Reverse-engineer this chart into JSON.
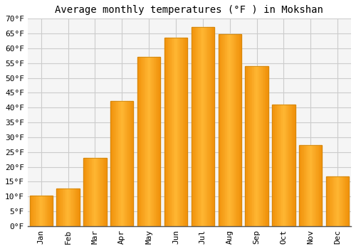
{
  "title": "Average monthly temperatures (°F ) in Mokshan",
  "months": [
    "Jan",
    "Feb",
    "Mar",
    "Apr",
    "May",
    "Jun",
    "Jul",
    "Aug",
    "Sep",
    "Oct",
    "Nov",
    "Dec"
  ],
  "values": [
    10.4,
    12.8,
    23.0,
    42.3,
    57.2,
    63.5,
    67.1,
    64.8,
    54.1,
    41.0,
    27.3,
    16.7
  ],
  "bar_color_center": "#FFB733",
  "bar_color_edge": "#F0900A",
  "bar_edge_color": "#C07800",
  "ylim": [
    0,
    70
  ],
  "yticks": [
    0,
    5,
    10,
    15,
    20,
    25,
    30,
    35,
    40,
    45,
    50,
    55,
    60,
    65,
    70
  ],
  "ytick_labels": [
    "0°F",
    "5°F",
    "10°F",
    "15°F",
    "20°F",
    "25°F",
    "30°F",
    "35°F",
    "40°F",
    "45°F",
    "50°F",
    "55°F",
    "60°F",
    "65°F",
    "70°F"
  ],
  "background_color": "#ffffff",
  "plot_bg_color": "#f5f5f5",
  "grid_color": "#cccccc",
  "title_fontsize": 10,
  "tick_fontsize": 8,
  "font_family": "monospace",
  "bar_width": 0.85
}
